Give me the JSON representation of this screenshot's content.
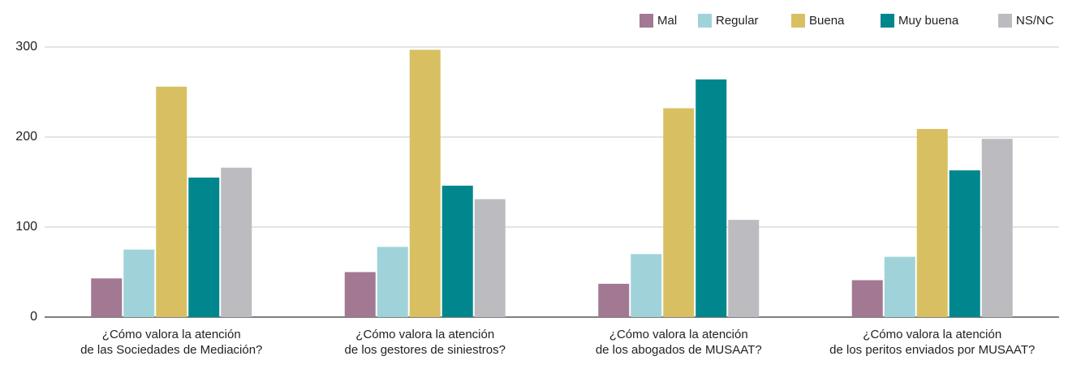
{
  "chart_data": {
    "type": "bar",
    "categories": [
      "¿Cómo valora la atención\nde las Sociedades de Mediación?",
      "¿Cómo valora la atención\nde los gestores de siniestros?",
      "¿Cómo valora la atención\nde los abogados de MUSAAT?",
      "¿Cómo valora la atención\nde los peritos enviados por MUSAAT?"
    ],
    "series": [
      {
        "name": "Mal",
        "color": "#a27892",
        "values": [
          43,
          50,
          37,
          41
        ]
      },
      {
        "name": "Regular",
        "color": "#a0d3d9",
        "values": [
          75,
          78,
          70,
          67
        ]
      },
      {
        "name": "Buena",
        "color": "#d8c062",
        "values": [
          256,
          297,
          232,
          209
        ]
      },
      {
        "name": "Muy buena",
        "color": "#00878e",
        "values": [
          155,
          146,
          264,
          163
        ]
      },
      {
        "name": "NS/NC",
        "color": "#bcbcc0",
        "values": [
          166,
          131,
          108,
          198
        ]
      }
    ],
    "ylim": [
      0,
      300
    ],
    "yticks": [
      0,
      100,
      200,
      300
    ],
    "grid": true,
    "legend": "top-right"
  }
}
